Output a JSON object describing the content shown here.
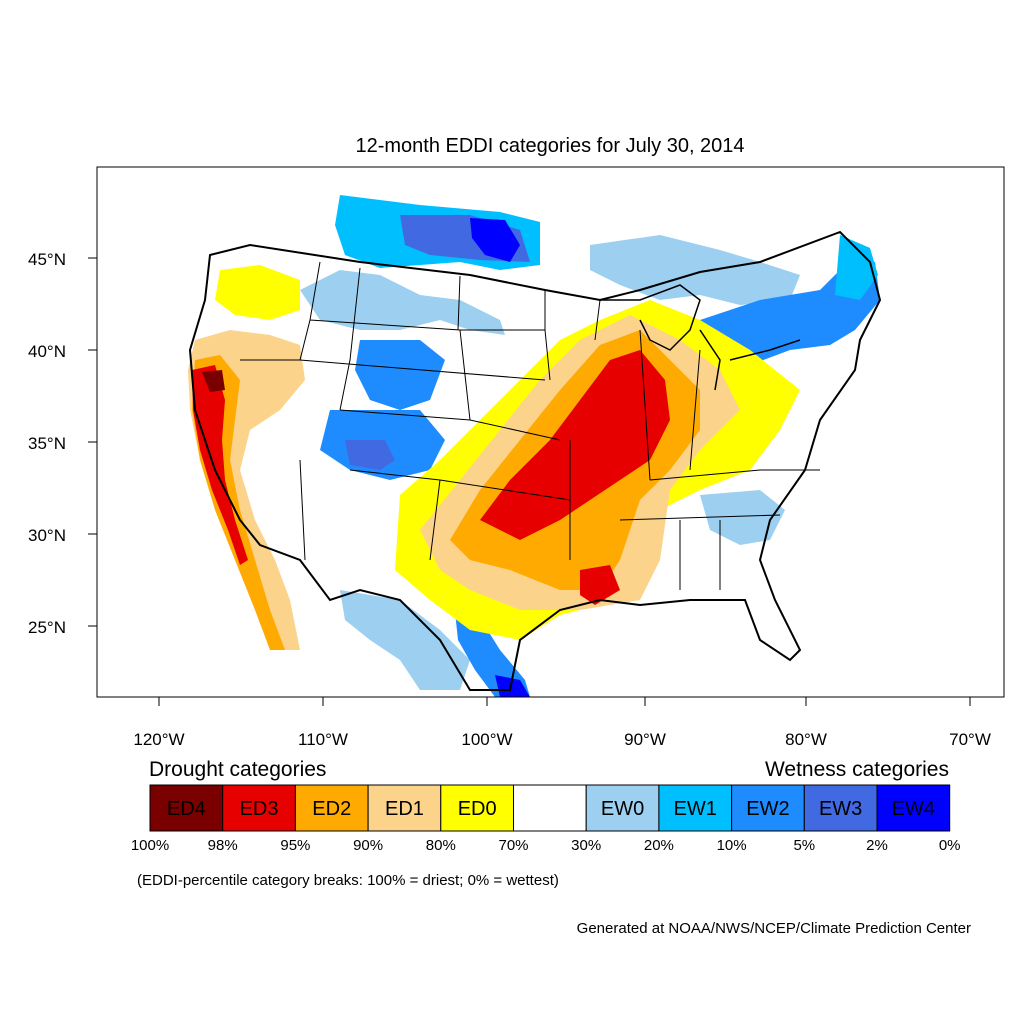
{
  "title": "12-month EDDI categories for July 30, 2014",
  "lat_labels": [
    "45°N",
    "40°N",
    "35°N",
    "30°N",
    "25°N"
  ],
  "lon_labels": [
    "120°W",
    "110°W",
    "100°W",
    "90°W",
    "80°W",
    "70°W"
  ],
  "legend": {
    "drought_heading": "Drought categories",
    "wetness_heading": "Wetness categories",
    "boxes": [
      {
        "label": "ED4",
        "color": "#7a0000",
        "text_color": "#ffffff"
      },
      {
        "label": "ED3",
        "color": "#e60000",
        "text_color": "#ffffff"
      },
      {
        "label": "ED2",
        "color": "#ffaa00",
        "text_color": "#ffffff"
      },
      {
        "label": "ED1",
        "color": "#fcd38b",
        "text_color": "#000000"
      },
      {
        "label": "ED0",
        "color": "#ffff00",
        "text_color": "#000000"
      },
      {
        "label": "",
        "color": "#ffffff",
        "text_color": "#000000"
      },
      {
        "label": "EW0",
        "color": "#9ccff0",
        "text_color": "#000000"
      },
      {
        "label": "EW1",
        "color": "#00bfff",
        "text_color": "#000000"
      },
      {
        "label": "EW2",
        "color": "#1e8cff",
        "text_color": "#ffffff"
      },
      {
        "label": "EW3",
        "color": "#4169e1",
        "text_color": "#ffffff"
      },
      {
        "label": "EW4",
        "color": "#0000ff",
        "text_color": "#ffffff"
      }
    ],
    "breaks": [
      "100%",
      "98%",
      "95%",
      "90%",
      "80%",
      "70%",
      "30%",
      "20%",
      "10%",
      "5%",
      "2%",
      "0%"
    ],
    "note": "(EDDI-percentile category breaks: 100% = driest; 0% = wettest)"
  },
  "credit": "Generated at NOAA/NWS/NCEP/Climate Prediction Center",
  "colors": {
    "ed4": "#7a0000",
    "ed3": "#e60000",
    "ed2": "#ffaa00",
    "ed1": "#fcd38b",
    "ed0": "#ffff00",
    "ew0": "#9ccff0",
    "ew1": "#00bfff",
    "ew2": "#1e8cff",
    "ew3": "#4169e1",
    "ew4": "#0000ff"
  }
}
